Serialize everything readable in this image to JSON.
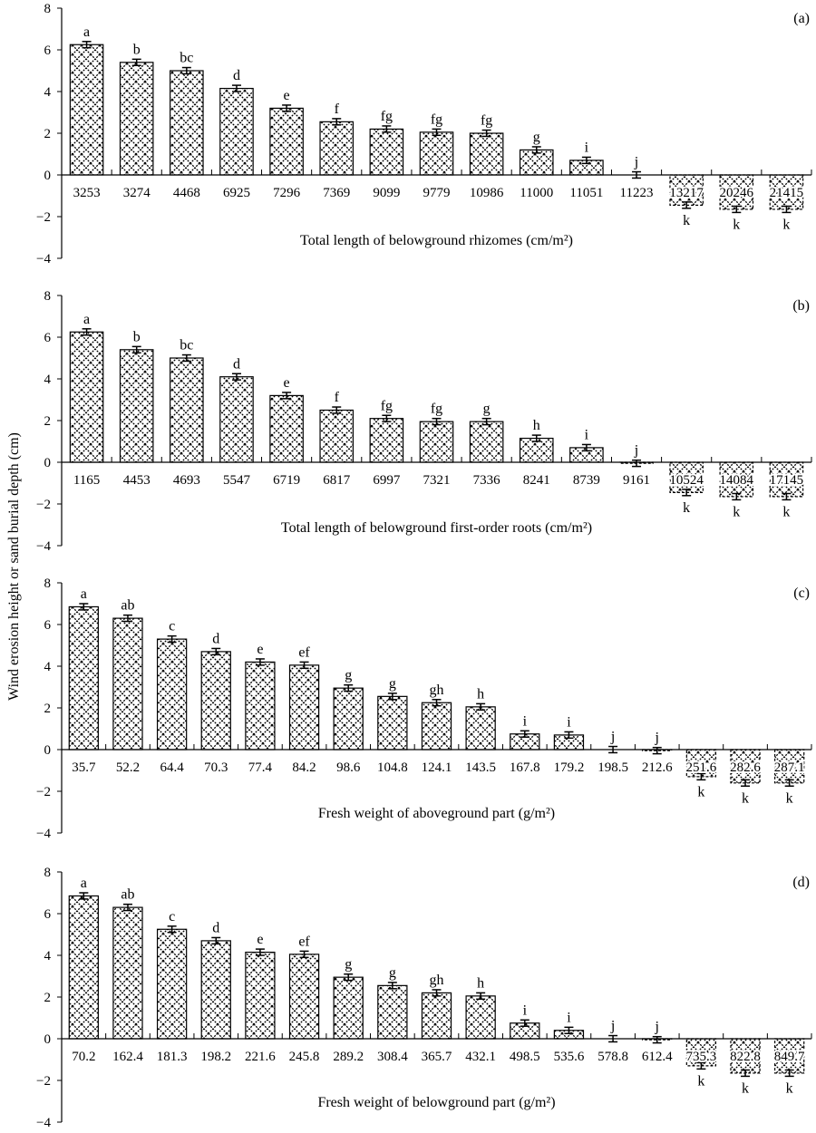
{
  "ylabel": "Wind erosion height or sand burial depth (cm)",
  "chart_data": [
    {
      "type": "bar",
      "panel": "(a)",
      "xlabel": "Total length of belowground rhizomes (cm/m²)",
      "ylim": [
        -4,
        8
      ],
      "yticks": [
        8,
        6,
        4,
        2,
        0,
        -2,
        -4
      ],
      "categories": [
        "3253",
        "3274",
        "4468",
        "6925",
        "7296",
        "7369",
        "9099",
        "9779",
        "10986",
        "11000",
        "11051",
        "11223",
        "13217",
        "20246",
        "21415"
      ],
      "values": [
        6.25,
        5.4,
        5.0,
        4.15,
        3.2,
        2.55,
        2.2,
        2.05,
        2.0,
        1.2,
        0.7,
        0.0,
        -1.45,
        -1.65,
        -1.65
      ],
      "letters": [
        "a",
        "b",
        "bc",
        "d",
        "e",
        "f",
        "fg",
        "fg",
        "fg",
        "g",
        "i",
        "j",
        "k",
        "k",
        "k"
      ]
    },
    {
      "type": "bar",
      "panel": "(b)",
      "xlabel": "Total length of belowground first-order roots (cm/m²)",
      "ylim": [
        -4,
        8
      ],
      "yticks": [
        8,
        6,
        4,
        2,
        0,
        -2,
        -4
      ],
      "categories": [
        "1165",
        "4453",
        "4693",
        "5547",
        "6719",
        "6817",
        "6997",
        "7321",
        "7336",
        "8241",
        "8739",
        "9161",
        "10524",
        "14084",
        "17145"
      ],
      "values": [
        6.25,
        5.4,
        5.0,
        4.1,
        3.2,
        2.5,
        2.1,
        1.95,
        1.95,
        1.15,
        0.7,
        -0.05,
        -1.45,
        -1.65,
        -1.65
      ],
      "letters": [
        "a",
        "b",
        "bc",
        "d",
        "e",
        "f",
        "fg",
        "fg",
        "g",
        "h",
        "i",
        "j",
        "k",
        "k",
        "k"
      ]
    },
    {
      "type": "bar",
      "panel": "(c)",
      "xlabel": "Fresh weight of aboveground part (g/m²)",
      "ylim": [
        -4,
        8
      ],
      "yticks": [
        8,
        6,
        4,
        2,
        0,
        -2,
        -4
      ],
      "categories": [
        "35.7",
        "52.2",
        "64.4",
        "70.3",
        "77.4",
        "84.2",
        "98.6",
        "104.8",
        "124.1",
        "143.5",
        "167.8",
        "179.2",
        "198.5",
        "212.6",
        "251.6",
        "282.6",
        "287.1"
      ],
      "values": [
        6.85,
        6.3,
        5.3,
        4.7,
        4.2,
        4.05,
        2.95,
        2.55,
        2.25,
        2.05,
        0.75,
        0.7,
        0.0,
        -0.05,
        -1.3,
        -1.6,
        -1.6
      ],
      "letters": [
        "a",
        "ab",
        "c",
        "d",
        "e",
        "ef",
        "g",
        "g",
        "gh",
        "h",
        "i",
        "i",
        "j",
        "j",
        "k",
        "k",
        "k"
      ]
    },
    {
      "type": "bar",
      "panel": "(d)",
      "xlabel": "Fresh weight of belowground part (g/m²)",
      "ylim": [
        -4,
        8
      ],
      "yticks": [
        8,
        6,
        4,
        2,
        0,
        -2,
        -4
      ],
      "categories": [
        "70.2",
        "162.4",
        "181.3",
        "198.2",
        "221.6",
        "245.8",
        "289.2",
        "308.4",
        "365.7",
        "432.1",
        "498.5",
        "535.6",
        "578.8",
        "612.4",
        "735.3",
        "822.8",
        "849.7"
      ],
      "values": [
        6.85,
        6.3,
        5.25,
        4.7,
        4.15,
        4.05,
        2.95,
        2.55,
        2.2,
        2.05,
        0.75,
        0.4,
        0.0,
        -0.05,
        -1.3,
        -1.65,
        -1.65
      ],
      "letters": [
        "a",
        "ab",
        "c",
        "d",
        "e",
        "ef",
        "g",
        "g",
        "gh",
        "h",
        "i",
        "i",
        "j",
        "j",
        "k",
        "k",
        "k"
      ]
    }
  ]
}
